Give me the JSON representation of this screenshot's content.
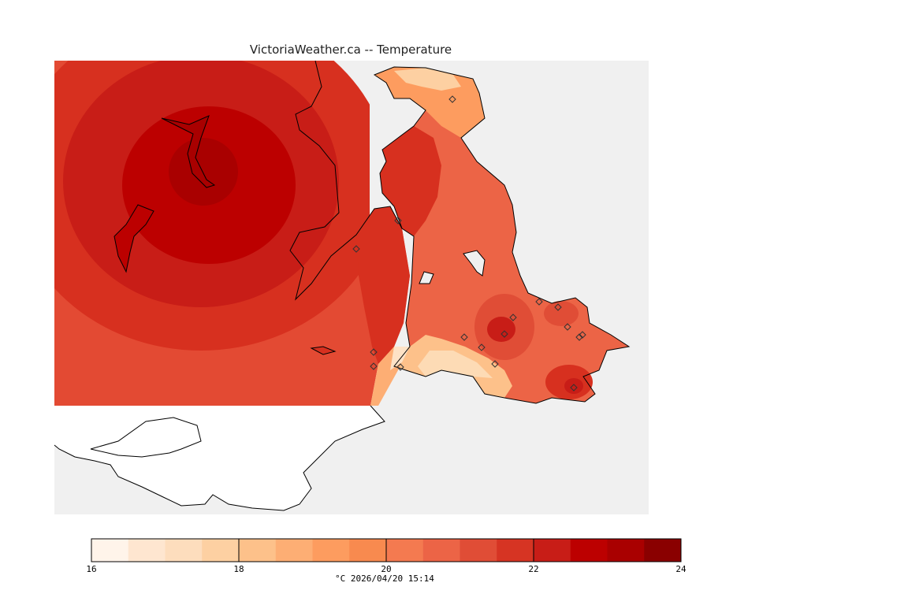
{
  "title": "VictoriaWeather.ca -- Temperature",
  "colorbar": {
    "ticks": [
      "16",
      "18",
      "20",
      "22",
      "24"
    ],
    "min": 16,
    "max": 24,
    "step": 0.5,
    "colors": [
      "#fff4ea",
      "#fee6d0",
      "#fdddbd",
      "#fdd0a2",
      "#fdc18a",
      "#fdae74",
      "#fd9c5f",
      "#f88a4f",
      "#f47a50",
      "#ec6446",
      "#e04d36",
      "#d63423",
      "#c81d17",
      "#bc0000",
      "#a90000",
      "#8a0000"
    ],
    "caption": "°C  2026/04/20 15:14"
  },
  "map": {
    "land_color": "#ffffff",
    "water_color": "#f0f0f0",
    "station_count": 17
  }
}
